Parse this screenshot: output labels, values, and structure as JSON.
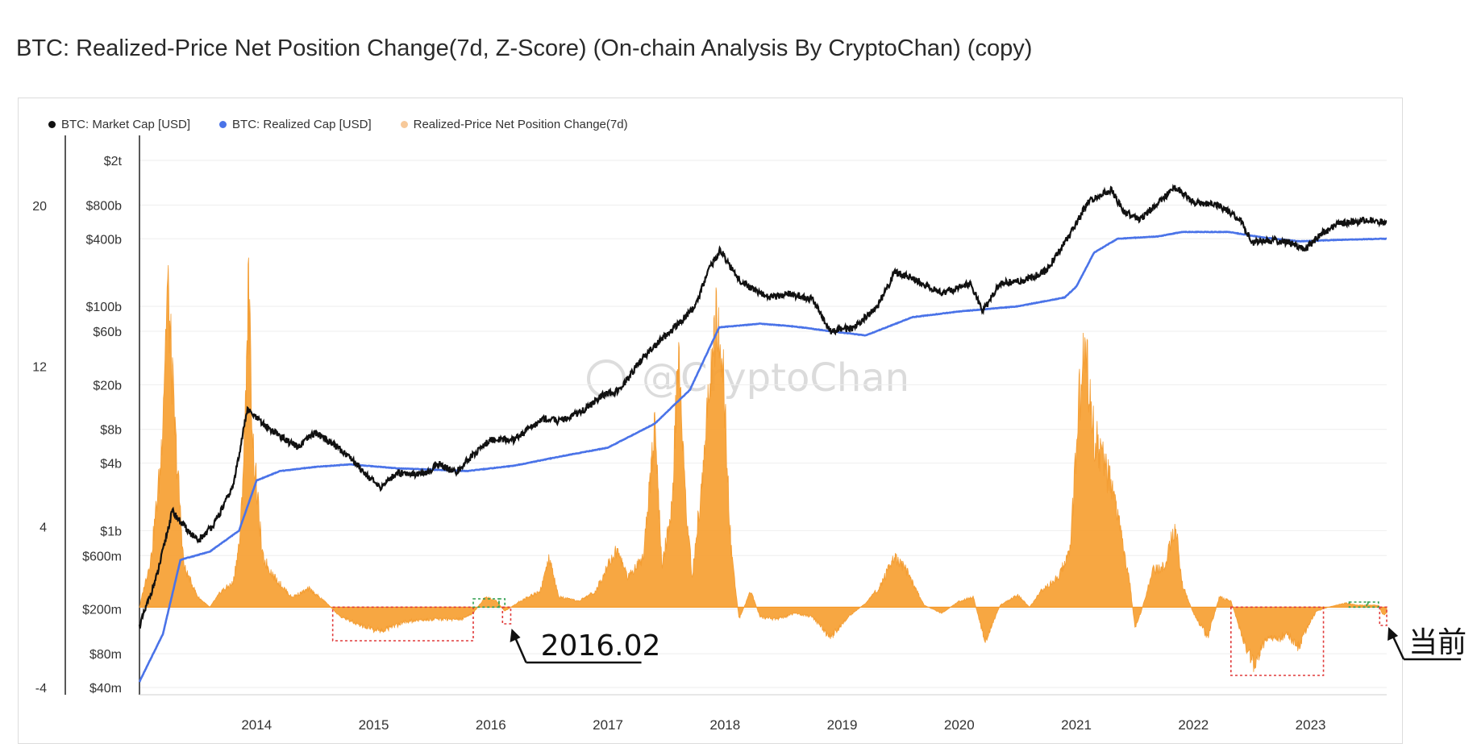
{
  "title": "BTC: Realized-Price Net Position Change(7d, Z-Score) (On-chain Analysis By CryptoChan) (copy)",
  "legend": [
    {
      "label": "BTC: Market Cap [USD]",
      "color": "#111111"
    },
    {
      "label": "BTC: Realized Cap [USD]",
      "color": "#4a73e8"
    },
    {
      "label": "Realized-Price Net Position Change(7d)",
      "color": "#f7c99a"
    }
  ],
  "watermark": "@CryptoChan",
  "annotations": {
    "left": "2016.02",
    "right": "当前"
  },
  "colors": {
    "market_cap": "#111111",
    "realized_cap": "#4a73e8",
    "zscore_fill": "#f7a033",
    "box_green": "#2e9e4f",
    "box_red": "#e03a3a"
  },
  "chart_data": {
    "type": "area",
    "x_range": [
      2013.0,
      2023.65
    ],
    "x_ticks": [
      "2014",
      "2015",
      "2016",
      "2017",
      "2018",
      "2019",
      "2020",
      "2021",
      "2022",
      "2023"
    ],
    "z_axis": {
      "ticks": [
        "-4",
        "4",
        "12",
        "20"
      ],
      "range": [
        -4,
        20
      ]
    },
    "cap_axis": {
      "scale": "log",
      "ticks": [
        "$40m",
        "$80m",
        "$200m",
        "$600m",
        "$1b",
        "$4b",
        "$8b",
        "$20b",
        "$60b",
        "$100b",
        "$400b",
        "$800b",
        "$2t"
      ]
    },
    "series": [
      {
        "name": "BTC: Market Cap [USD]",
        "unit": "USD",
        "points": [
          [
            2013.0,
            140000000.0
          ],
          [
            2013.15,
            400000000.0
          ],
          [
            2013.28,
            1500000000.0
          ],
          [
            2013.35,
            1200000000.0
          ],
          [
            2013.5,
            800000000.0
          ],
          [
            2013.65,
            1200000000.0
          ],
          [
            2013.8,
            2500000000.0
          ],
          [
            2013.92,
            12000000000.0
          ],
          [
            2014.05,
            9000000000.0
          ],
          [
            2014.2,
            7000000000.0
          ],
          [
            2014.35,
            5500000000.0
          ],
          [
            2014.5,
            7500000000.0
          ],
          [
            2014.65,
            6000000000.0
          ],
          [
            2014.8,
            4500000000.0
          ],
          [
            2015.05,
            2400000000.0
          ],
          [
            2015.2,
            3300000000.0
          ],
          [
            2015.45,
            3200000000.0
          ],
          [
            2015.55,
            4000000000.0
          ],
          [
            2015.7,
            3300000000.0
          ],
          [
            2015.85,
            4800000000.0
          ],
          [
            2016.0,
            6500000000.0
          ],
          [
            2016.2,
            6500000000.0
          ],
          [
            2016.45,
            10000000000.0
          ],
          [
            2016.6,
            9500000000.0
          ],
          [
            2016.8,
            12000000000.0
          ],
          [
            2016.95,
            16000000000.0
          ],
          [
            2017.1,
            18000000000.0
          ],
          [
            2017.3,
            35000000000.0
          ],
          [
            2017.45,
            50000000000.0
          ],
          [
            2017.6,
            70000000000.0
          ],
          [
            2017.75,
            100000000000.0
          ],
          [
            2017.85,
            200000000000.0
          ],
          [
            2017.96,
            320000000000.0
          ],
          [
            2018.1,
            180000000000.0
          ],
          [
            2018.25,
            140000000000.0
          ],
          [
            2018.4,
            120000000000.0
          ],
          [
            2018.55,
            130000000000.0
          ],
          [
            2018.75,
            115000000000.0
          ],
          [
            2018.9,
            60000000000.0
          ],
          [
            2019.1,
            65000000000.0
          ],
          [
            2019.3,
            100000000000.0
          ],
          [
            2019.45,
            200000000000.0
          ],
          [
            2019.6,
            180000000000.0
          ],
          [
            2019.85,
            130000000000.0
          ],
          [
            2020.1,
            160000000000.0
          ],
          [
            2020.2,
            90000000000.0
          ],
          [
            2020.35,
            160000000000.0
          ],
          [
            2020.55,
            170000000000.0
          ],
          [
            2020.75,
            210000000000.0
          ],
          [
            2020.95,
            450000000000.0
          ],
          [
            2021.1,
            850000000000.0
          ],
          [
            2021.3,
            1100000000000.0
          ],
          [
            2021.4,
            700000000000.0
          ],
          [
            2021.55,
            600000000000.0
          ],
          [
            2021.7,
            850000000000.0
          ],
          [
            2021.85,
            1150000000000.0
          ],
          [
            2022.0,
            850000000000.0
          ],
          [
            2022.2,
            800000000000.0
          ],
          [
            2022.4,
            600000000000.0
          ],
          [
            2022.5,
            370000000000.0
          ],
          [
            2022.7,
            390000000000.0
          ],
          [
            2022.85,
            360000000000.0
          ],
          [
            2022.95,
            320000000000.0
          ],
          [
            2023.1,
            450000000000.0
          ],
          [
            2023.25,
            550000000000.0
          ],
          [
            2023.45,
            580000000000.0
          ],
          [
            2023.6,
            570000000000.0
          ]
        ]
      },
      {
        "name": "BTC: Realized Cap [USD]",
        "unit": "USD",
        "points": [
          [
            2013.0,
            45000000.0
          ],
          [
            2013.2,
            120000000.0
          ],
          [
            2013.35,
            550000000.0
          ],
          [
            2013.6,
            650000000.0
          ],
          [
            2013.85,
            1000000000.0
          ],
          [
            2014.0,
            2800000000.0
          ],
          [
            2014.2,
            3400000000.0
          ],
          [
            2014.5,
            3700000000.0
          ],
          [
            2014.8,
            3900000000.0
          ],
          [
            2015.2,
            3600000000.0
          ],
          [
            2015.8,
            3400000000.0
          ],
          [
            2016.2,
            3800000000.0
          ],
          [
            2016.6,
            4600000000.0
          ],
          [
            2017.0,
            5500000000.0
          ],
          [
            2017.4,
            9000000000.0
          ],
          [
            2017.7,
            18000000000.0
          ],
          [
            2017.95,
            65000000000.0
          ],
          [
            2018.3,
            70000000000.0
          ],
          [
            2018.6,
            66000000000.0
          ],
          [
            2018.9,
            60000000000.0
          ],
          [
            2019.2,
            55000000000.0
          ],
          [
            2019.6,
            80000000000.0
          ],
          [
            2020.0,
            90000000000.0
          ],
          [
            2020.5,
            100000000000.0
          ],
          [
            2020.9,
            120000000000.0
          ],
          [
            2021.0,
            150000000000.0
          ],
          [
            2021.15,
            300000000000.0
          ],
          [
            2021.35,
            400000000000.0
          ],
          [
            2021.7,
            420000000000.0
          ],
          [
            2021.9,
            460000000000.0
          ],
          [
            2022.3,
            460000000000.0
          ],
          [
            2022.6,
            410000000000.0
          ],
          [
            2022.9,
            380000000000.0
          ],
          [
            2023.2,
            390000000000.0
          ],
          [
            2023.6,
            400000000000.0
          ]
        ]
      },
      {
        "name": "Realized-Price Net Position Change(7d)",
        "unit": "z-score",
        "points": [
          [
            2013.0,
            0.0
          ],
          [
            2013.1,
            2.5
          ],
          [
            2013.18,
            7.0
          ],
          [
            2013.24,
            16.0
          ],
          [
            2013.3,
            9.0
          ],
          [
            2013.38,
            2.0
          ],
          [
            2013.5,
            0.5
          ],
          [
            2013.6,
            0.0
          ],
          [
            2013.7,
            0.8
          ],
          [
            2013.8,
            1.2
          ],
          [
            2013.86,
            3.5
          ],
          [
            2013.9,
            9.0
          ],
          [
            2013.93,
            16.0
          ],
          [
            2013.97,
            8.0
          ],
          [
            2014.05,
            2.5
          ],
          [
            2014.15,
            1.5
          ],
          [
            2014.3,
            0.5
          ],
          [
            2014.45,
            0.9
          ],
          [
            2014.6,
            0.2
          ],
          [
            2014.7,
            -0.4
          ],
          [
            2014.85,
            -0.8
          ],
          [
            2015.05,
            -1.2
          ],
          [
            2015.3,
            -0.7
          ],
          [
            2015.5,
            -0.6
          ],
          [
            2015.75,
            -0.6
          ],
          [
            2015.85,
            -0.3
          ],
          [
            2015.95,
            0.5
          ],
          [
            2016.05,
            0.3
          ],
          [
            2016.12,
            -0.2
          ],
          [
            2016.25,
            0.3
          ],
          [
            2016.42,
            0.8
          ],
          [
            2016.5,
            2.4
          ],
          [
            2016.58,
            0.5
          ],
          [
            2016.75,
            0.3
          ],
          [
            2016.9,
            0.8
          ],
          [
            2017.0,
            2.2
          ],
          [
            2017.08,
            2.8
          ],
          [
            2017.17,
            1.5
          ],
          [
            2017.3,
            2.5
          ],
          [
            2017.4,
            9.0
          ],
          [
            2017.46,
            2.0
          ],
          [
            2017.55,
            5.0
          ],
          [
            2017.6,
            13.0
          ],
          [
            2017.66,
            5.5
          ],
          [
            2017.72,
            1.5
          ],
          [
            2017.8,
            6.0
          ],
          [
            2017.86,
            10.5
          ],
          [
            2017.92,
            14.0
          ],
          [
            2017.98,
            12.0
          ],
          [
            2018.05,
            3.0
          ],
          [
            2018.12,
            -0.6
          ],
          [
            2018.22,
            0.8
          ],
          [
            2018.3,
            -0.5
          ],
          [
            2018.45,
            -0.6
          ],
          [
            2018.6,
            -0.3
          ],
          [
            2018.75,
            -0.5
          ],
          [
            2018.9,
            -1.5
          ],
          [
            2019.05,
            -0.5
          ],
          [
            2019.2,
            0.2
          ],
          [
            2019.32,
            1.0
          ],
          [
            2019.45,
            2.5
          ],
          [
            2019.55,
            1.8
          ],
          [
            2019.7,
            0.1
          ],
          [
            2019.85,
            -0.3
          ],
          [
            2020.0,
            0.3
          ],
          [
            2020.12,
            0.5
          ],
          [
            2020.22,
            -1.7
          ],
          [
            2020.35,
            0.1
          ],
          [
            2020.5,
            0.6
          ],
          [
            2020.6,
            0.0
          ],
          [
            2020.7,
            0.8
          ],
          [
            2020.85,
            1.5
          ],
          [
            2020.95,
            3.0
          ],
          [
            2021.02,
            10.0
          ],
          [
            2021.07,
            13.0
          ],
          [
            2021.15,
            8.5
          ],
          [
            2021.25,
            7.0
          ],
          [
            2021.35,
            4.5
          ],
          [
            2021.45,
            1.5
          ],
          [
            2021.5,
            -1.0
          ],
          [
            2021.55,
            -0.3
          ],
          [
            2021.65,
            1.8
          ],
          [
            2021.75,
            2.0
          ],
          [
            2021.85,
            4.2
          ],
          [
            2021.9,
            1.2
          ],
          [
            2022.0,
            -0.3
          ],
          [
            2022.12,
            -1.5
          ],
          [
            2022.22,
            0.5
          ],
          [
            2022.32,
            0.3
          ],
          [
            2022.45,
            -2.0
          ],
          [
            2022.52,
            -2.9
          ],
          [
            2022.62,
            -1.5
          ],
          [
            2022.72,
            -1.6
          ],
          [
            2022.8,
            -1.3
          ],
          [
            2022.9,
            -2.0
          ],
          [
            2022.97,
            -1.0
          ],
          [
            2023.05,
            -0.2
          ],
          [
            2023.15,
            0.0
          ],
          [
            2023.3,
            0.2
          ],
          [
            2023.4,
            0.1
          ],
          [
            2023.5,
            0.1
          ],
          [
            2023.58,
            0.1
          ],
          [
            2023.62,
            -0.4
          ],
          [
            2023.65,
            -0.3
          ]
        ]
      }
    ]
  }
}
